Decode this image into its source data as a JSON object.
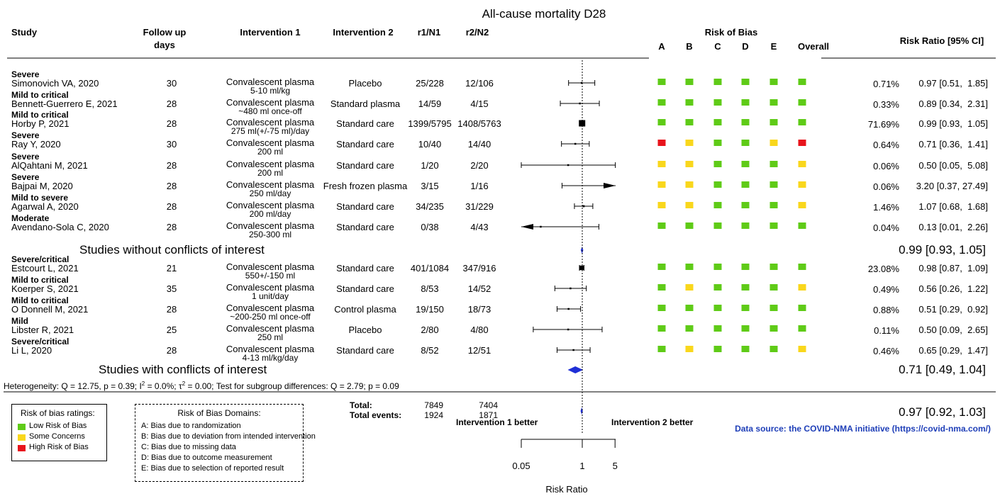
{
  "title": "All-cause mortality D28",
  "headers": {
    "study": "Study",
    "follow1": "Follow up",
    "follow2": "days",
    "int1": "Intervention 1",
    "int2": "Intervention 2",
    "r1": "r1/N1",
    "r2": "r2/N2",
    "rob": "Risk of Bias",
    "robA": "A",
    "robB": "B",
    "robC": "C",
    "robD": "D",
    "robE": "E",
    "overall": "Overall",
    "rr": "Risk Ratio [95% CI]"
  },
  "colors": {
    "low": "#5fcb17",
    "some": "#f9d71c",
    "high": "#e8141c",
    "diamond": "#1f2fd6",
    "source": "#1f3fb8"
  },
  "studies": [
    {
      "severity": "Severe",
      "name": "Simonovich VA, 2020",
      "follow": "30",
      "int1": "Convalescent plasma",
      "dose": "5-10 ml/kg",
      "int2": "Placebo",
      "r1": "25/228",
      "r2": "12/106",
      "rob": [
        "low",
        "low",
        "low",
        "low",
        "low",
        "low"
      ],
      "weight": "0.71%",
      "ci": "0.97 [0.51,  1.85]",
      "est": 0.97,
      "lo": 0.51,
      "hi": 1.85,
      "w": 0.71
    },
    {
      "severity": "Mild to critical",
      "name": "Bennett-Guerrero E, 2021",
      "follow": "28",
      "int1": "Convalescent plasma",
      "dose": "~480 ml once-off",
      "int2": "Standard plasma",
      "r1": "14/59",
      "r2": "4/15",
      "rob": [
        "low",
        "low",
        "low",
        "low",
        "low",
        "low"
      ],
      "weight": "0.33%",
      "ci": "0.89 [0.34,  2.31]",
      "est": 0.89,
      "lo": 0.34,
      "hi": 2.31,
      "w": 0.33
    },
    {
      "severity": "Mild to critical",
      "name": "Horby P, 2021",
      "follow": "28",
      "int1": "Convalescent plasma",
      "dose": "275 ml(+/-75 ml)/day",
      "int2": "Standard care",
      "r1": "1399/5795",
      "r2": "1408/5763",
      "rob": [
        "low",
        "low",
        "low",
        "low",
        "low",
        "low"
      ],
      "weight": "71.69%",
      "ci": "0.99 [0.93,  1.05]",
      "est": 0.99,
      "lo": 0.93,
      "hi": 1.05,
      "w": 71.69
    },
    {
      "severity": "Severe",
      "name": "Ray Y, 2020",
      "follow": "30",
      "int1": "Convalescent plasma",
      "dose": "200 ml",
      "int2": "Standard care",
      "r1": "10/40",
      "r2": "14/40",
      "rob": [
        "high",
        "some",
        "low",
        "low",
        "some",
        "high"
      ],
      "weight": "0.64%",
      "ci": "0.71 [0.36,  1.41]",
      "est": 0.71,
      "lo": 0.36,
      "hi": 1.41,
      "w": 0.64
    },
    {
      "severity": "Severe",
      "name": "AlQahtani M, 2021",
      "follow": "28",
      "int1": "Convalescent plasma",
      "dose": "200 ml",
      "int2": "Standard care",
      "r1": "1/20",
      "r2": "2/20",
      "rob": [
        "some",
        "some",
        "low",
        "low",
        "low",
        "some"
      ],
      "weight": "0.06%",
      "ci": "0.50 [0.05,  5.08]",
      "est": 0.5,
      "lo": 0.05,
      "hi": 5.08,
      "w": 0.06
    },
    {
      "severity": "Severe",
      "name": "Bajpai M, 2020",
      "follow": "28",
      "int1": "Convalescent plasma",
      "dose": "250 ml/day",
      "int2": "Fresh frozen plasma",
      "r1": "3/15",
      "r2": "1/16",
      "rob": [
        "some",
        "some",
        "low",
        "low",
        "low",
        "some"
      ],
      "weight": "0.06%",
      "ci": "3.20 [0.37, 27.49]",
      "est": 3.2,
      "lo": 0.37,
      "hi": 27.49,
      "w": 0.06
    },
    {
      "severity": "Mild to severe",
      "name": "Agarwal A, 2020",
      "follow": "28",
      "int1": "Convalescent plasma",
      "dose": "200 ml/day",
      "int2": "Standard care",
      "r1": "34/235",
      "r2": "31/229",
      "rob": [
        "some",
        "some",
        "low",
        "low",
        "low",
        "some"
      ],
      "weight": "1.46%",
      "ci": "1.07 [0.68,  1.68]",
      "est": 1.07,
      "lo": 0.68,
      "hi": 1.68,
      "w": 1.46
    },
    {
      "severity": "Moderate",
      "name": "Avendano-Sola C, 2020",
      "follow": "28",
      "int1": "Convalescent plasma",
      "dose": "250-300 ml",
      "int2": "Standard care",
      "r1": "0/38",
      "r2": "4/43",
      "rob": [
        "low",
        "low",
        "low",
        "low",
        "low",
        "low"
      ],
      "weight": "0.04%",
      "ci": "0.13 [0.01,  2.26]",
      "est": 0.13,
      "lo": 0.01,
      "hi": 2.26,
      "w": 0.04
    },
    {
      "severity": "Severe/critical",
      "name": "Estcourt L, 2021",
      "follow": "21",
      "int1": "Convalescent plasma",
      "dose": "550+/-150 ml",
      "int2": "Standard care",
      "r1": "401/1084",
      "r2": "347/916",
      "rob": [
        "low",
        "low",
        "low",
        "low",
        "low",
        "low"
      ],
      "weight": "23.08%",
      "ci": "0.98 [0.87,  1.09]",
      "est": 0.98,
      "lo": 0.87,
      "hi": 1.09,
      "w": 23.08
    },
    {
      "severity": "Mild to critical",
      "name": "Koerper S, 2021",
      "follow": "35",
      "int1": "Convalescent plasma",
      "dose": "1 unit/day",
      "int2": "Standard care",
      "r1": "8/53",
      "r2": "14/52",
      "rob": [
        "low",
        "some",
        "low",
        "low",
        "low",
        "some"
      ],
      "weight": "0.49%",
      "ci": "0.56 [0.26,  1.22]",
      "est": 0.56,
      "lo": 0.26,
      "hi": 1.22,
      "w": 0.49
    },
    {
      "severity": "Mild to critical",
      "name": "O Donnell M, 2021",
      "follow": "28",
      "int1": "Convalescent plasma",
      "dose": "~200-250 ml once-off",
      "int2": "Control plasma",
      "r1": "19/150",
      "r2": "18/73",
      "rob": [
        "low",
        "low",
        "low",
        "low",
        "low",
        "low"
      ],
      "weight": "0.88%",
      "ci": "0.51 [0.29,  0.92]",
      "est": 0.51,
      "lo": 0.29,
      "hi": 0.92,
      "w": 0.88
    },
    {
      "severity": "Mild",
      "name": "Libster R, 2021",
      "follow": "25",
      "int1": "Convalescent plasma",
      "dose": "250 ml",
      "int2": "Placebo",
      "r1": "2/80",
      "r2": "4/80",
      "rob": [
        "low",
        "low",
        "low",
        "low",
        "low",
        "low"
      ],
      "weight": "0.11%",
      "ci": "0.50 [0.09,  2.65]",
      "est": 0.5,
      "lo": 0.09,
      "hi": 2.65,
      "w": 0.11
    },
    {
      "severity": "Severe/critical",
      "name": "Li L, 2020",
      "follow": "28",
      "int1": "Convalescent plasma",
      "dose": "4-13 ml/kg/day",
      "int2": "Standard care",
      "r1": "8/52",
      "r2": "12/51",
      "rob": [
        "low",
        "some",
        "low",
        "low",
        "low",
        "some"
      ],
      "weight": "0.46%",
      "ci": "0.65 [0.29,  1.47]",
      "est": 0.65,
      "lo": 0.29,
      "hi": 1.47,
      "w": 0.46
    }
  ],
  "subgroups": [
    {
      "label": "Studies without conflicts of interest",
      "ci": "0.99 [0.93, 1.05]",
      "est": 0.99,
      "lo": 0.93,
      "hi": 1.05
    },
    {
      "label": "Studies with conflicts of interest",
      "ci": "0.71 [0.49, 1.04]",
      "est": 0.71,
      "lo": 0.49,
      "hi": 1.04
    }
  ],
  "heterogeneity": {
    "prefix": "Heterogeneity: Q = 12.75, p = 0.39; I",
    "sup1": "2",
    "mid": " = 0.0%; τ",
    "sup2": "2",
    "suffix": " = 0.00; Test for subgroup differences: Q = 2.79; p = 0.09"
  },
  "totals": {
    "total_label": "Total:",
    "events_label": "Total events:",
    "n1": "7849",
    "n2": "7404",
    "e1": "1924",
    "e2": "1871"
  },
  "overall": {
    "ci": "0.97 [0.92, 1.03]",
    "est": 0.97,
    "lo": 0.92,
    "hi": 1.03
  },
  "axis": {
    "left_label": "Intervention 1 better",
    "right_label": "Intervention 2 better",
    "ticks": [
      {
        "v": 0.05,
        "label": "0.05"
      },
      {
        "v": 1,
        "label": "1"
      },
      {
        "v": 5,
        "label": "5"
      }
    ],
    "xlabel": "Risk Ratio",
    "scale": "log"
  },
  "source": "Data source: the COVID-NMA initiative (https://covid-nma.com/)",
  "legend": {
    "title": "Risk of bias ratings:",
    "low": "Low Risk of Bias",
    "some": "Some Concerns",
    "high": "High Risk of Bias"
  },
  "domains": {
    "title": "Risk of Bias Domains:",
    "items": [
      "A: Bias due to randomization",
      "B: Bias due to deviation from intended intervention",
      "C: Bias due to missing data",
      "D: Bias due to outcome measurement",
      "E: Bias due to selection of reported result"
    ]
  },
  "chart_data": {
    "type": "forest",
    "title": "All-cause mortality D28",
    "xlabel": "Risk Ratio",
    "scale": "log",
    "xticks": [
      0.05,
      1,
      5
    ],
    "series": [
      {
        "name": "Simonovich VA, 2020",
        "est": 0.97,
        "lo": 0.51,
        "hi": 1.85,
        "weight": 0.71
      },
      {
        "name": "Bennett-Guerrero E, 2021",
        "est": 0.89,
        "lo": 0.34,
        "hi": 2.31,
        "weight": 0.33
      },
      {
        "name": "Horby P, 2021",
        "est": 0.99,
        "lo": 0.93,
        "hi": 1.05,
        "weight": 71.69
      },
      {
        "name": "Ray Y, 2020",
        "est": 0.71,
        "lo": 0.36,
        "hi": 1.41,
        "weight": 0.64
      },
      {
        "name": "AlQahtani M, 2021",
        "est": 0.5,
        "lo": 0.05,
        "hi": 5.08,
        "weight": 0.06
      },
      {
        "name": "Bajpai M, 2020",
        "est": 3.2,
        "lo": 0.37,
        "hi": 27.49,
        "weight": 0.06
      },
      {
        "name": "Agarwal A, 2020",
        "est": 1.07,
        "lo": 0.68,
        "hi": 1.68,
        "weight": 1.46
      },
      {
        "name": "Avendano-Sola C, 2020",
        "est": 0.13,
        "lo": 0.01,
        "hi": 2.26,
        "weight": 0.04
      },
      {
        "name": "Estcourt L, 2021",
        "est": 0.98,
        "lo": 0.87,
        "hi": 1.09,
        "weight": 23.08
      },
      {
        "name": "Koerper S, 2021",
        "est": 0.56,
        "lo": 0.26,
        "hi": 1.22,
        "weight": 0.49
      },
      {
        "name": "O Donnell M, 2021",
        "est": 0.51,
        "lo": 0.29,
        "hi": 0.92,
        "weight": 0.88
      },
      {
        "name": "Libster R, 2021",
        "est": 0.5,
        "lo": 0.09,
        "hi": 2.65,
        "weight": 0.11
      },
      {
        "name": "Li L, 2020",
        "est": 0.65,
        "lo": 0.29,
        "hi": 1.47,
        "weight": 0.46
      }
    ],
    "pooled": [
      {
        "name": "Studies without conflicts of interest",
        "est": 0.99,
        "lo": 0.93,
        "hi": 1.05
      },
      {
        "name": "Studies with conflicts of interest",
        "est": 0.71,
        "lo": 0.49,
        "hi": 1.04
      },
      {
        "name": "Total",
        "est": 0.97,
        "lo": 0.92,
        "hi": 1.03
      }
    ]
  }
}
